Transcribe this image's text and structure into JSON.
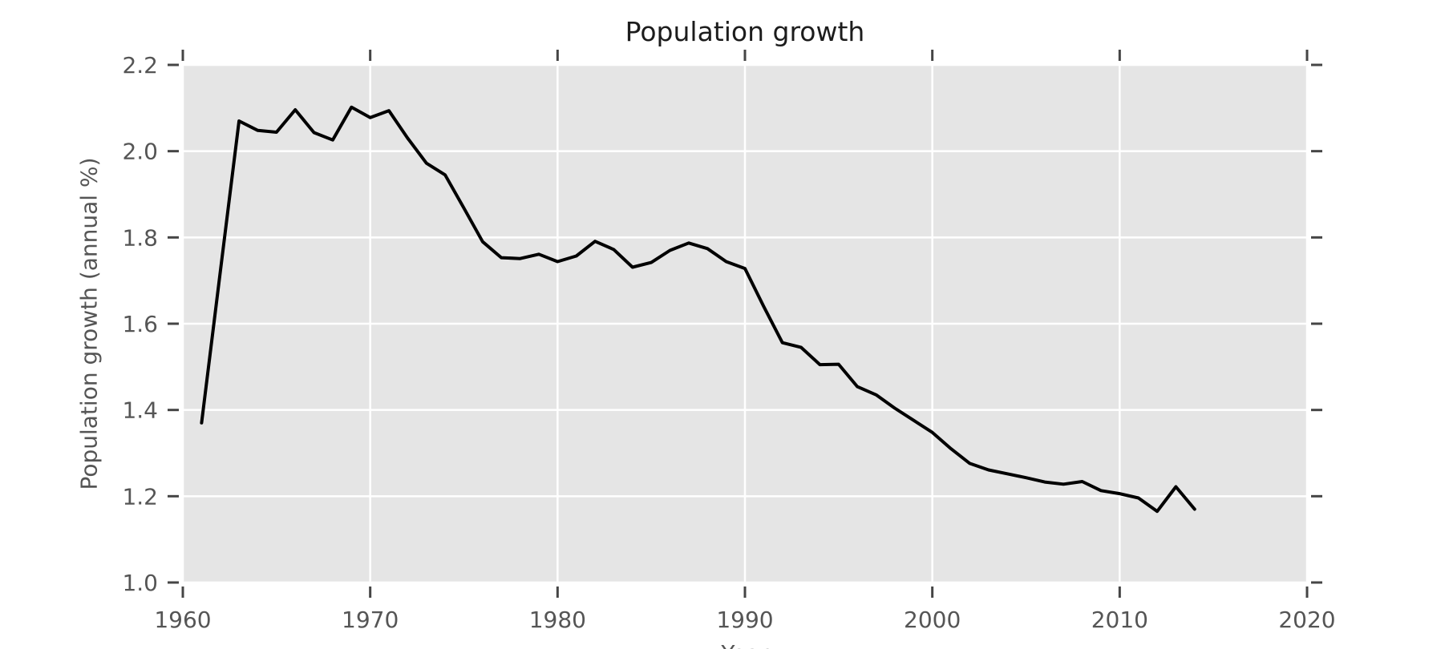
{
  "chart_data": {
    "type": "line",
    "title": "Population growth",
    "xlabel": "Year",
    "ylabel": "Population growth (annual %)",
    "xlim": [
      1960,
      2020
    ],
    "ylim": [
      1.0,
      2.2
    ],
    "xticks": [
      1960,
      1970,
      1980,
      1990,
      2000,
      2010,
      2020
    ],
    "xticklabels": [
      "1960",
      "1970",
      "1980",
      "1990",
      "2000",
      "2010",
      "2020"
    ],
    "yticks": [
      1.0,
      1.2,
      1.4,
      1.6,
      1.8,
      2.0,
      2.2
    ],
    "yticklabels": [
      "1.0",
      "1.2",
      "1.4",
      "1.6",
      "1.8",
      "2.0",
      "2.2"
    ],
    "grid": true,
    "legend": false,
    "plot_bg": "#e5e5e5",
    "grid_color": "#ffffff",
    "line_color": "#000000",
    "tick_color": "#454545",
    "label_color": "#555555",
    "title_color": "#1c1c1c",
    "series": [
      {
        "name": "Population growth",
        "x": [
          1961,
          1962,
          1963,
          1964,
          1965,
          1966,
          1967,
          1968,
          1969,
          1970,
          1971,
          1972,
          1973,
          1974,
          1975,
          1976,
          1977,
          1978,
          1979,
          1980,
          1981,
          1982,
          1983,
          1984,
          1985,
          1986,
          1987,
          1988,
          1989,
          1990,
          1991,
          1992,
          1993,
          1994,
          1995,
          1996,
          1997,
          1998,
          1999,
          2000,
          2001,
          2002,
          2003,
          2004,
          2005,
          2006,
          2007,
          2008,
          2009,
          2010,
          2011,
          2012,
          2013,
          2014
        ],
        "y": [
          1.37,
          1.72,
          2.07,
          2.048,
          2.044,
          2.096,
          2.043,
          2.026,
          2.102,
          2.078,
          2.094,
          2.03,
          1.972,
          1.945,
          1.868,
          1.79,
          1.753,
          1.751,
          1.761,
          1.744,
          1.757,
          1.791,
          1.772,
          1.731,
          1.742,
          1.77,
          1.787,
          1.774,
          1.744,
          1.728,
          1.64,
          1.556,
          1.545,
          1.505,
          1.506,
          1.454,
          1.435,
          1.404,
          1.376,
          1.348,
          1.31,
          1.276,
          1.261,
          1.252,
          1.243,
          1.233,
          1.228,
          1.234,
          1.213,
          1.206,
          1.196,
          1.165,
          1.222,
          1.17
        ]
      }
    ]
  }
}
